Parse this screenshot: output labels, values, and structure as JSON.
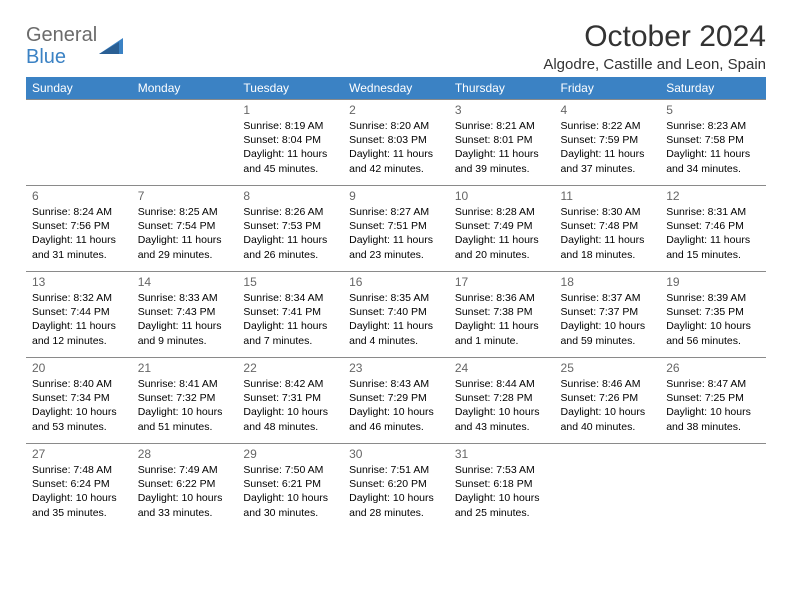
{
  "brand": {
    "word1": "General",
    "word2": "Blue"
  },
  "title": "October 2024",
  "location": "Algodre, Castille and Leon, Spain",
  "colors": {
    "header_bg": "#3b82c4",
    "header_text": "#ffffff",
    "grid_line": "#8a8a8a",
    "daynum": "#666666",
    "body_text": "#000000",
    "logo_gray": "#6b6b6b",
    "logo_blue": "#3b82c4",
    "page_bg": "#ffffff"
  },
  "weekdays": [
    "Sunday",
    "Monday",
    "Tuesday",
    "Wednesday",
    "Thursday",
    "Friday",
    "Saturday"
  ],
  "weeks": [
    [
      null,
      null,
      {
        "n": "1",
        "sr": "8:19 AM",
        "ss": "8:04 PM",
        "dl": "11 hours and 45 minutes."
      },
      {
        "n": "2",
        "sr": "8:20 AM",
        "ss": "8:03 PM",
        "dl": "11 hours and 42 minutes."
      },
      {
        "n": "3",
        "sr": "8:21 AM",
        "ss": "8:01 PM",
        "dl": "11 hours and 39 minutes."
      },
      {
        "n": "4",
        "sr": "8:22 AM",
        "ss": "7:59 PM",
        "dl": "11 hours and 37 minutes."
      },
      {
        "n": "5",
        "sr": "8:23 AM",
        "ss": "7:58 PM",
        "dl": "11 hours and 34 minutes."
      }
    ],
    [
      {
        "n": "6",
        "sr": "8:24 AM",
        "ss": "7:56 PM",
        "dl": "11 hours and 31 minutes."
      },
      {
        "n": "7",
        "sr": "8:25 AM",
        "ss": "7:54 PM",
        "dl": "11 hours and 29 minutes."
      },
      {
        "n": "8",
        "sr": "8:26 AM",
        "ss": "7:53 PM",
        "dl": "11 hours and 26 minutes."
      },
      {
        "n": "9",
        "sr": "8:27 AM",
        "ss": "7:51 PM",
        "dl": "11 hours and 23 minutes."
      },
      {
        "n": "10",
        "sr": "8:28 AM",
        "ss": "7:49 PM",
        "dl": "11 hours and 20 minutes."
      },
      {
        "n": "11",
        "sr": "8:30 AM",
        "ss": "7:48 PM",
        "dl": "11 hours and 18 minutes."
      },
      {
        "n": "12",
        "sr": "8:31 AM",
        "ss": "7:46 PM",
        "dl": "11 hours and 15 minutes."
      }
    ],
    [
      {
        "n": "13",
        "sr": "8:32 AM",
        "ss": "7:44 PM",
        "dl": "11 hours and 12 minutes."
      },
      {
        "n": "14",
        "sr": "8:33 AM",
        "ss": "7:43 PM",
        "dl": "11 hours and 9 minutes."
      },
      {
        "n": "15",
        "sr": "8:34 AM",
        "ss": "7:41 PM",
        "dl": "11 hours and 7 minutes."
      },
      {
        "n": "16",
        "sr": "8:35 AM",
        "ss": "7:40 PM",
        "dl": "11 hours and 4 minutes."
      },
      {
        "n": "17",
        "sr": "8:36 AM",
        "ss": "7:38 PM",
        "dl": "11 hours and 1 minute."
      },
      {
        "n": "18",
        "sr": "8:37 AM",
        "ss": "7:37 PM",
        "dl": "10 hours and 59 minutes."
      },
      {
        "n": "19",
        "sr": "8:39 AM",
        "ss": "7:35 PM",
        "dl": "10 hours and 56 minutes."
      }
    ],
    [
      {
        "n": "20",
        "sr": "8:40 AM",
        "ss": "7:34 PM",
        "dl": "10 hours and 53 minutes."
      },
      {
        "n": "21",
        "sr": "8:41 AM",
        "ss": "7:32 PM",
        "dl": "10 hours and 51 minutes."
      },
      {
        "n": "22",
        "sr": "8:42 AM",
        "ss": "7:31 PM",
        "dl": "10 hours and 48 minutes."
      },
      {
        "n": "23",
        "sr": "8:43 AM",
        "ss": "7:29 PM",
        "dl": "10 hours and 46 minutes."
      },
      {
        "n": "24",
        "sr": "8:44 AM",
        "ss": "7:28 PM",
        "dl": "10 hours and 43 minutes."
      },
      {
        "n": "25",
        "sr": "8:46 AM",
        "ss": "7:26 PM",
        "dl": "10 hours and 40 minutes."
      },
      {
        "n": "26",
        "sr": "8:47 AM",
        "ss": "7:25 PM",
        "dl": "10 hours and 38 minutes."
      }
    ],
    [
      {
        "n": "27",
        "sr": "7:48 AM",
        "ss": "6:24 PM",
        "dl": "10 hours and 35 minutes."
      },
      {
        "n": "28",
        "sr": "7:49 AM",
        "ss": "6:22 PM",
        "dl": "10 hours and 33 minutes."
      },
      {
        "n": "29",
        "sr": "7:50 AM",
        "ss": "6:21 PM",
        "dl": "10 hours and 30 minutes."
      },
      {
        "n": "30",
        "sr": "7:51 AM",
        "ss": "6:20 PM",
        "dl": "10 hours and 28 minutes."
      },
      {
        "n": "31",
        "sr": "7:53 AM",
        "ss": "6:18 PM",
        "dl": "10 hours and 25 minutes."
      },
      null,
      null
    ]
  ],
  "labels": {
    "sunrise": "Sunrise:",
    "sunset": "Sunset:",
    "daylight": "Daylight:"
  }
}
